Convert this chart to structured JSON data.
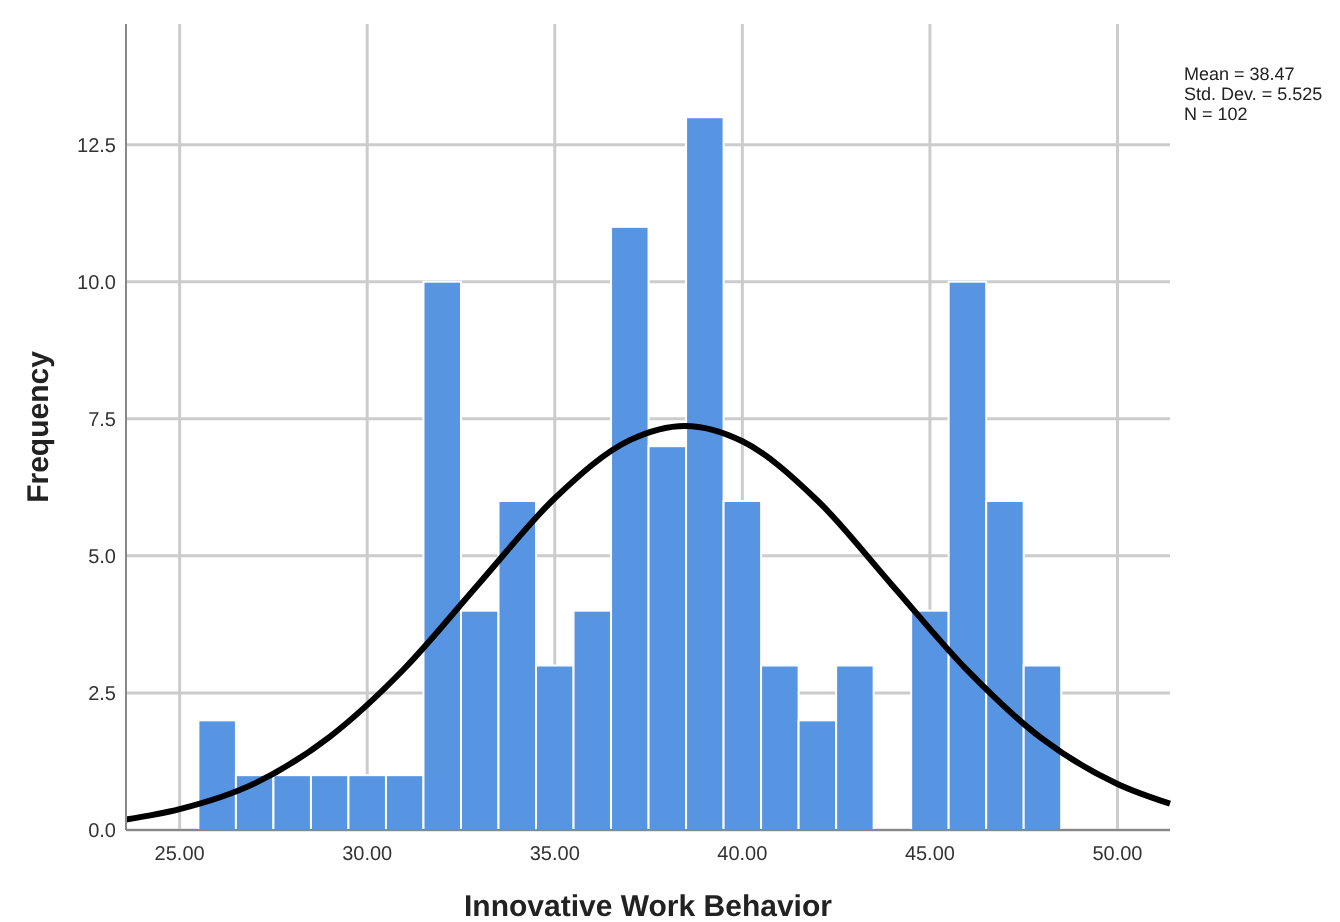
{
  "chart_data": {
    "type": "histogram",
    "xlabel": "Innovative Work Behavior",
    "ylabel": "Frequency",
    "annotations": [
      "Mean = 38.47",
      "Std. Dev. = 5.525",
      "N = 102"
    ],
    "bins": [
      25.5,
      26.5,
      27.5,
      28.5,
      29.5,
      30.5,
      31.5,
      32.5,
      33.5,
      34.5,
      35.5,
      36.5,
      37.5,
      38.5,
      39.5,
      40.5,
      41.5,
      42.5,
      43.5,
      44.5,
      45.5,
      46.5,
      47.5,
      48.5
    ],
    "series": [
      {
        "color": "#5795e3",
        "values": [
          2,
          1,
          1,
          1,
          1,
          1,
          10,
          4,
          6,
          3,
          4,
          11,
          7,
          13,
          6,
          3,
          2,
          3,
          0,
          4,
          10,
          6,
          3
        ]
      },
      {
        "type": "line",
        "color": "#000000",
        "x": [
          23.57,
          25,
          27,
          29,
          31,
          33,
          35,
          37,
          38.47,
          40,
          42,
          44,
          46,
          48,
          50,
          51.4
        ],
        "values": [
          0.19,
          0.38,
          0.85,
          1.7,
          2.95,
          4.51,
          6.05,
          7.11,
          7.37,
          7.09,
          6.01,
          4.46,
          2.91,
          1.66,
          0.84,
          0.48
        ]
      }
    ],
    "xlim": [
      23.57,
      51.4
    ],
    "ylim": [
      0,
      14.7
    ],
    "xticks": [
      {
        "value": 25,
        "label": "25.00"
      },
      {
        "value": 30,
        "label": "30.00"
      },
      {
        "value": 35,
        "label": "35.00"
      },
      {
        "value": 40,
        "label": "40.00"
      },
      {
        "value": 45,
        "label": "45.00"
      },
      {
        "value": 50,
        "label": "50.00"
      }
    ],
    "yticks": [
      {
        "value": 0,
        "label": "0.0"
      },
      {
        "value": 2.5,
        "label": "2.5"
      },
      {
        "value": 5,
        "label": "5.0"
      },
      {
        "value": 7.5,
        "label": "7.5"
      },
      {
        "value": 10,
        "label": "10.0"
      },
      {
        "value": 12.5,
        "label": "12.5"
      }
    ],
    "grid": true,
    "marker": "none",
    "line_style": "solid"
  }
}
